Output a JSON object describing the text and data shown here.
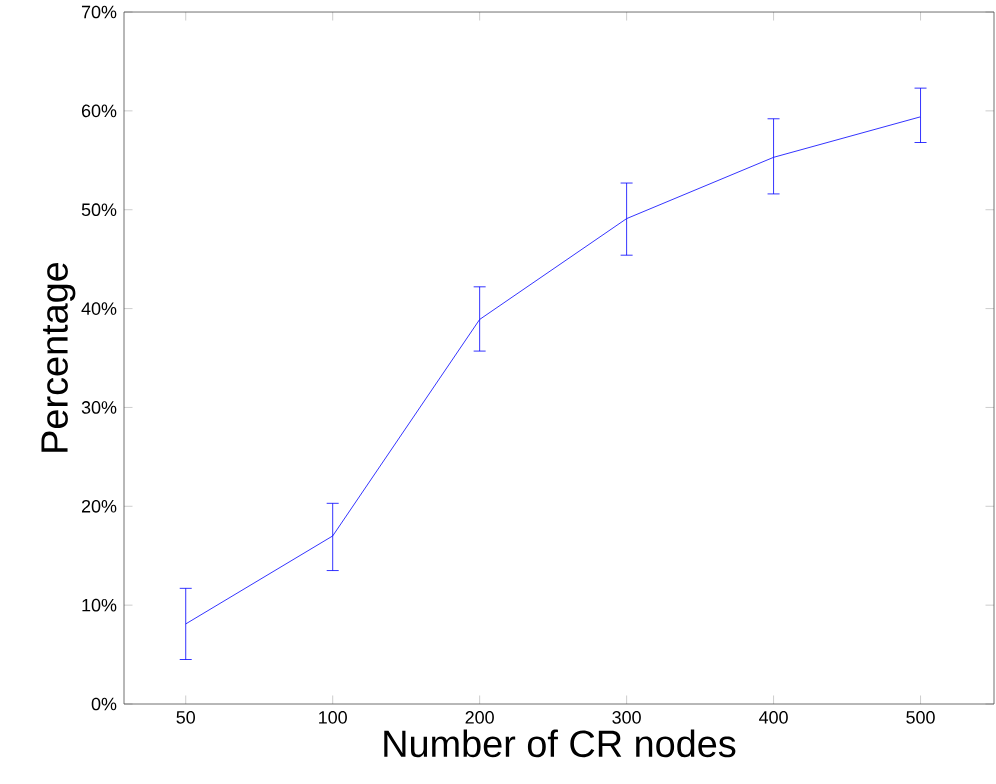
{
  "chart_data": {
    "type": "line",
    "xlabel": "Number of CR nodes",
    "ylabel": "Percentage",
    "categories": [
      "50",
      "100",
      "200",
      "300",
      "400",
      "500"
    ],
    "values": [
      8.1,
      17.0,
      38.9,
      49.1,
      55.3,
      59.4
    ],
    "errors": [
      [
        4.5,
        11.7
      ],
      [
        13.5,
        20.3
      ],
      [
        35.7,
        42.2
      ],
      [
        45.4,
        52.7
      ],
      [
        51.6,
        59.2
      ],
      [
        56.8,
        62.3
      ]
    ],
    "color": "#0000ff",
    "marker": "none",
    "line_style": "solid",
    "grid": false,
    "ylim": [
      0,
      70
    ],
    "yticks": [
      {
        "value": 0,
        "label": "0%"
      },
      {
        "value": 10,
        "label": "10%"
      },
      {
        "value": 20,
        "label": "20%"
      },
      {
        "value": 30,
        "label": "30%"
      },
      {
        "value": 40,
        "label": "40%"
      },
      {
        "value": 50,
        "label": "50%"
      },
      {
        "value": 60,
        "label": "60%"
      },
      {
        "value": 70,
        "label": "70%"
      }
    ]
  }
}
